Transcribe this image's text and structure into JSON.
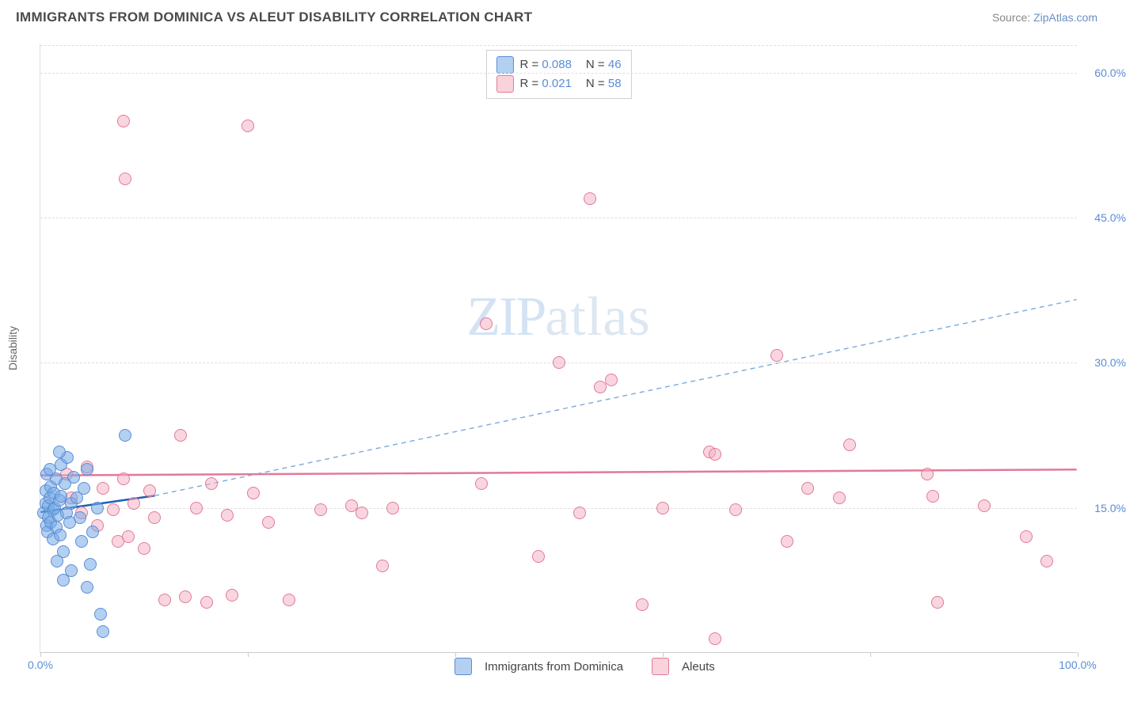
{
  "header": {
    "title": "IMMIGRANTS FROM DOMINICA VS ALEUT DISABILITY CORRELATION CHART",
    "source_prefix": "Source: ",
    "source_link": "ZipAtlas.com"
  },
  "chart": {
    "type": "scatter",
    "ylabel": "Disability",
    "xlim": [
      0,
      100
    ],
    "ylim": [
      0,
      63
    ],
    "xtick_positions": [
      0,
      20,
      40,
      60,
      80,
      100
    ],
    "xtick_labels": {
      "0": "0.0%",
      "100": "100.0%"
    },
    "ytick_grid": [
      15,
      30,
      45,
      60
    ],
    "ytick_labels": {
      "15": "15.0%",
      "30": "30.0%",
      "45": "45.0%",
      "60": "60.0%"
    },
    "background_color": "#ffffff",
    "grid_color": "#e0e0e0",
    "axis_label_color": "#5a8dd6",
    "watermark": {
      "zip": "ZIP",
      "atlas": "atlas"
    }
  },
  "series": {
    "blue": {
      "label": "Immigrants from Dominica",
      "color_fill": "rgba(118,169,229,0.55)",
      "color_stroke": "#5a8dd6",
      "R": "0.088",
      "N": "46",
      "trend": {
        "x1": 0,
        "y1": 14.5,
        "x2": 11,
        "y2": 16.2,
        "color": "#1e5fb5",
        "width": 2.5,
        "dash": "none"
      },
      "trend_ext": {
        "x1": 11,
        "y1": 16.2,
        "x2": 100,
        "y2": 36.5,
        "color": "#7aa9de",
        "width": 1.4,
        "dash": "6 5"
      },
      "points": [
        [
          0.3,
          14.5
        ],
        [
          0.5,
          15.5
        ],
        [
          0.5,
          16.8
        ],
        [
          0.6,
          13.2
        ],
        [
          0.6,
          18.5
        ],
        [
          0.7,
          12.5
        ],
        [
          0.8,
          14.0
        ],
        [
          0.8,
          15.2
        ],
        [
          0.9,
          16.0
        ],
        [
          0.9,
          19.0
        ],
        [
          1.0,
          13.5
        ],
        [
          1.0,
          17.2
        ],
        [
          1.2,
          14.8
        ],
        [
          1.2,
          11.8
        ],
        [
          1.3,
          16.5
        ],
        [
          1.4,
          15.0
        ],
        [
          1.5,
          13.0
        ],
        [
          1.5,
          18.0
        ],
        [
          1.6,
          9.5
        ],
        [
          1.7,
          14.2
        ],
        [
          1.8,
          15.8
        ],
        [
          1.9,
          12.2
        ],
        [
          2.0,
          16.2
        ],
        [
          2.0,
          19.5
        ],
        [
          2.2,
          10.5
        ],
        [
          2.4,
          17.5
        ],
        [
          2.5,
          14.5
        ],
        [
          2.6,
          20.2
        ],
        [
          2.8,
          13.5
        ],
        [
          3.0,
          8.5
        ],
        [
          3.0,
          15.5
        ],
        [
          3.2,
          18.2
        ],
        [
          3.5,
          16.0
        ],
        [
          3.8,
          14.0
        ],
        [
          4.0,
          11.5
        ],
        [
          4.2,
          17.0
        ],
        [
          4.5,
          19.0
        ],
        [
          4.8,
          9.2
        ],
        [
          5.0,
          12.5
        ],
        [
          5.5,
          15.0
        ],
        [
          5.8,
          4.0
        ],
        [
          6.0,
          2.2
        ],
        [
          8.2,
          22.5
        ],
        [
          4.5,
          6.8
        ],
        [
          1.8,
          20.8
        ],
        [
          2.2,
          7.5
        ]
      ]
    },
    "pink": {
      "label": "Aleuts",
      "color_fill": "rgba(244,174,192,0.5)",
      "color_stroke": "#e27999",
      "R": "0.021",
      "N": "58",
      "trend": {
        "x1": 0,
        "y1": 18.3,
        "x2": 100,
        "y2": 18.9,
        "color": "#e27999",
        "width": 2.5,
        "dash": "none"
      },
      "points": [
        [
          8.0,
          55.0
        ],
        [
          8.2,
          49.0
        ],
        [
          20.0,
          54.5
        ],
        [
          2.5,
          18.5
        ],
        [
          3.0,
          16.0
        ],
        [
          4.0,
          14.5
        ],
        [
          4.5,
          19.2
        ],
        [
          5.5,
          13.2
        ],
        [
          6.0,
          17.0
        ],
        [
          7.0,
          14.8
        ],
        [
          7.5,
          11.5
        ],
        [
          8.0,
          18.0
        ],
        [
          8.5,
          12.0
        ],
        [
          9.0,
          15.5
        ],
        [
          10.0,
          10.8
        ],
        [
          10.5,
          16.8
        ],
        [
          11.0,
          14.0
        ],
        [
          12.0,
          5.5
        ],
        [
          13.5,
          22.5
        ],
        [
          14.0,
          5.8
        ],
        [
          15.0,
          15.0
        ],
        [
          16.0,
          5.2
        ],
        [
          16.5,
          17.5
        ],
        [
          18.0,
          14.2
        ],
        [
          18.5,
          6.0
        ],
        [
          20.5,
          16.5
        ],
        [
          22.0,
          13.5
        ],
        [
          24.0,
          5.5
        ],
        [
          27.0,
          14.8
        ],
        [
          30.0,
          15.2
        ],
        [
          31.0,
          14.5
        ],
        [
          33.0,
          9.0
        ],
        [
          34.0,
          15.0
        ],
        [
          42.5,
          17.5
        ],
        [
          43.0,
          34.0
        ],
        [
          48.0,
          10.0
        ],
        [
          50.0,
          30.0
        ],
        [
          52.0,
          14.5
        ],
        [
          53.0,
          47.0
        ],
        [
          54.0,
          27.5
        ],
        [
          55.0,
          28.2
        ],
        [
          58.0,
          5.0
        ],
        [
          60.0,
          15.0
        ],
        [
          64.5,
          20.8
        ],
        [
          65.0,
          20.5
        ],
        [
          65.0,
          1.5
        ],
        [
          67.0,
          14.8
        ],
        [
          71.0,
          30.8
        ],
        [
          72.0,
          11.5
        ],
        [
          74.0,
          17.0
        ],
        [
          77.0,
          16.0
        ],
        [
          78.0,
          21.5
        ],
        [
          85.5,
          18.5
        ],
        [
          86.0,
          16.2
        ],
        [
          86.5,
          5.2
        ],
        [
          91.0,
          15.2
        ],
        [
          95.0,
          12.0
        ],
        [
          97.0,
          9.5
        ]
      ]
    }
  },
  "legend_top": {
    "R_label": "R =",
    "N_label": "N ="
  },
  "legend_bottom": {}
}
